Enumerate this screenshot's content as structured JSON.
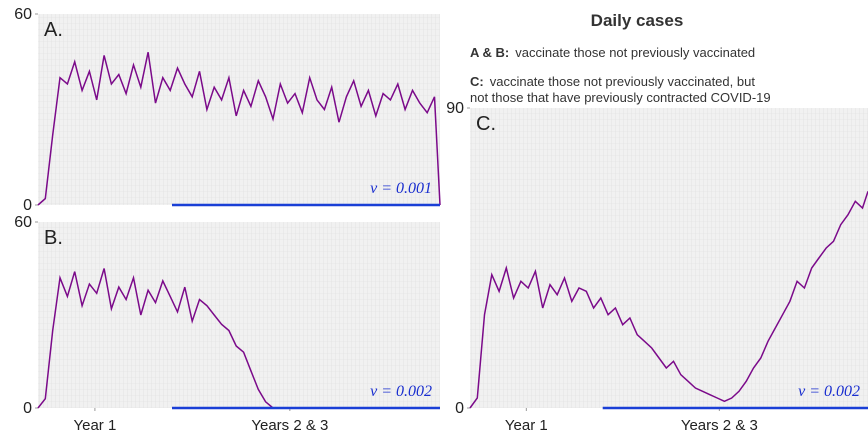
{
  "header": {
    "title": "Daily cases",
    "line1_key": "A & B:",
    "line1_text": "vaccinate those not previously vaccinated",
    "line2_key": "C:",
    "line2_text": "vaccinate those not previously vaccinated, but",
    "line3_text": "not those that have previously contracted COVID-19"
  },
  "chart_data": [
    {
      "type": "line",
      "panel_label": "A.",
      "annotation": "v = 0.001",
      "x": [
        0,
        20,
        40,
        60,
        80,
        100,
        120,
        140,
        160,
        180,
        200,
        220,
        240,
        260,
        280,
        300,
        320,
        340,
        360,
        380,
        400,
        420,
        440,
        460,
        480,
        500,
        520,
        540,
        560,
        580,
        600,
        620,
        640,
        660,
        680,
        700,
        720,
        740,
        760,
        780,
        800,
        820,
        840,
        860,
        880,
        900,
        920,
        940,
        960,
        980,
        1000,
        1020,
        1040,
        1060,
        1080,
        1095
      ],
      "xlim": [
        0,
        1095
      ],
      "ylim": [
        0,
        60
      ],
      "yticks": [
        0,
        60
      ],
      "series": [
        {
          "color": "#7b0a8a",
          "values": [
            0,
            2,
            22,
            40,
            38,
            45,
            36,
            42,
            33,
            47,
            38,
            41,
            35,
            44,
            37,
            48,
            32,
            40,
            36,
            43,
            38,
            34,
            42,
            30,
            37,
            33,
            40,
            28,
            36,
            31,
            39,
            34,
            27,
            38,
            32,
            35,
            29,
            40,
            33,
            30,
            37,
            26,
            34,
            39,
            31,
            36,
            28,
            35,
            33,
            38,
            30,
            36,
            32,
            29,
            34,
            0
          ]
        },
        {
          "color": "#1a3fd6",
          "x": [
            365,
            1095
          ],
          "values": [
            0,
            0
          ]
        }
      ]
    },
    {
      "type": "line",
      "panel_label": "B.",
      "annotation": "v = 0.002",
      "x": [
        0,
        20,
        40,
        60,
        80,
        100,
        120,
        140,
        160,
        180,
        200,
        220,
        240,
        260,
        280,
        300,
        320,
        340,
        360,
        380,
        400,
        420,
        440,
        460,
        480,
        500,
        520,
        540,
        560,
        580,
        600,
        620,
        640,
        660,
        680,
        700,
        720,
        740,
        760,
        780,
        800,
        820,
        840,
        860,
        880,
        900,
        920,
        940,
        960,
        980,
        1000,
        1020,
        1040,
        1060,
        1080,
        1095
      ],
      "xlim": [
        0,
        1095
      ],
      "ylim": [
        0,
        60
      ],
      "yticks": [
        0,
        60
      ],
      "xticks": [
        {
          "value": 155,
          "label": "Year 1"
        },
        {
          "value": 686,
          "label": "Years 2 & 3"
        }
      ],
      "series": [
        {
          "color": "#7b0a8a",
          "values": [
            0,
            3,
            25,
            42,
            36,
            44,
            33,
            40,
            37,
            45,
            32,
            39,
            35,
            42,
            30,
            38,
            34,
            41,
            36,
            31,
            39,
            28,
            35,
            33,
            30,
            27,
            25,
            20,
            18,
            12,
            6,
            2,
            0,
            0,
            0,
            0,
            0,
            0,
            0,
            0,
            0,
            0,
            0,
            0,
            0,
            0,
            0,
            0,
            0,
            0,
            0,
            0,
            0,
            0,
            0,
            0
          ]
        },
        {
          "color": "#1a3fd6",
          "x": [
            365,
            1095
          ],
          "values": [
            0,
            0
          ]
        }
      ]
    },
    {
      "type": "line",
      "panel_label": "C.",
      "annotation": "v = 0.002",
      "x": [
        0,
        20,
        40,
        60,
        80,
        100,
        120,
        140,
        160,
        180,
        200,
        220,
        240,
        260,
        280,
        300,
        320,
        340,
        360,
        380,
        400,
        420,
        440,
        460,
        480,
        500,
        520,
        540,
        560,
        580,
        600,
        620,
        640,
        660,
        680,
        700,
        720,
        740,
        760,
        780,
        800,
        820,
        840,
        860,
        880,
        900,
        920,
        940,
        960,
        980,
        1000,
        1020,
        1040,
        1060,
        1080,
        1095
      ],
      "xlim": [
        0,
        1095
      ],
      "ylim": [
        0,
        90
      ],
      "yticks": [
        0,
        90
      ],
      "xticks": [
        {
          "value": 155,
          "label": "Year 1"
        },
        {
          "value": 686,
          "label": "Years 2 & 3"
        }
      ],
      "series": [
        {
          "color": "#7b0a8a",
          "values": [
            0,
            3,
            28,
            40,
            35,
            42,
            33,
            38,
            36,
            41,
            30,
            37,
            34,
            39,
            32,
            36,
            35,
            30,
            33,
            28,
            30,
            25,
            27,
            22,
            20,
            18,
            15,
            12,
            14,
            10,
            8,
            6,
            5,
            4,
            3,
            2,
            3,
            5,
            8,
            12,
            15,
            20,
            24,
            28,
            32,
            38,
            36,
            42,
            45,
            48,
            50,
            55,
            58,
            62,
            60,
            65
          ]
        },
        {
          "color": "#1a3fd6",
          "x": [
            365,
            1095
          ],
          "values": [
            0,
            0
          ]
        }
      ]
    }
  ]
}
